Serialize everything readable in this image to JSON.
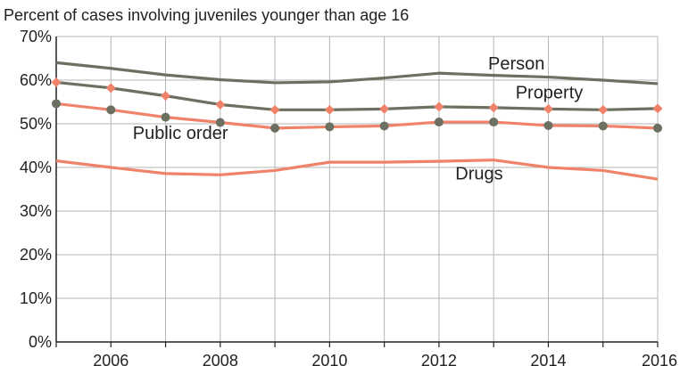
{
  "chart_data": {
    "type": "line",
    "title": "",
    "xlabel": "",
    "ylabel": "Percent of cases involving juveniles younger than age 16",
    "x": [
      2005,
      2006,
      2007,
      2008,
      2009,
      2010,
      2011,
      2012,
      2013,
      2014,
      2015,
      2016
    ],
    "x_tick_labels": [
      "2006",
      "2008",
      "2010",
      "2012",
      "2014",
      "2016"
    ],
    "x_tick_values": [
      2006,
      2008,
      2010,
      2012,
      2014,
      2016
    ],
    "y_tick_labels": [
      "0%",
      "10%",
      "20%",
      "30%",
      "40%",
      "50%",
      "60%",
      "70%"
    ],
    "y_tick_values": [
      0,
      10,
      20,
      30,
      40,
      50,
      60,
      70
    ],
    "xlim": [
      2005,
      2016
    ],
    "ylim": [
      0,
      70
    ],
    "grid": true,
    "legend": "inline labels",
    "series": [
      {
        "name": "Person",
        "color": "#6b7061",
        "marker": "none",
        "values": [
          64,
          62.7,
          61.2,
          60.1,
          59.4,
          59.6,
          60.5,
          61.6,
          61.1,
          60.7,
          60.0,
          59.2
        ]
      },
      {
        "name": "Property",
        "color": "#6b7061",
        "marker": "diamond",
        "marker_color": "#f0826a",
        "values": [
          59.5,
          58.2,
          56.4,
          54.4,
          53.2,
          53.2,
          53.4,
          53.9,
          53.7,
          53.4,
          53.2,
          53.5
        ]
      },
      {
        "name": "Public order",
        "color": "#f0826a",
        "marker": "circle",
        "marker_color": "#6b7061",
        "values": [
          54.6,
          53.2,
          51.5,
          50.3,
          49.0,
          49.3,
          49.5,
          50.4,
          50.4,
          49.6,
          49.5,
          49.0
        ]
      },
      {
        "name": "Drugs",
        "color": "#f0826a",
        "marker": "none",
        "values": [
          41.5,
          40.0,
          38.6,
          38.3,
          39.3,
          41.2,
          41.2,
          41.4,
          41.7,
          40.0,
          39.3,
          37.3
        ]
      }
    ],
    "series_label_positions": {
      "Person": {
        "x": 2012.9,
        "y": 62.5
      },
      "Property": {
        "x": 2013.4,
        "y": 55.8
      },
      "Public order": {
        "x": 2006.4,
        "y": 46.5
      },
      "Drugs": {
        "x": 2012.3,
        "y": 37.2
      }
    }
  }
}
